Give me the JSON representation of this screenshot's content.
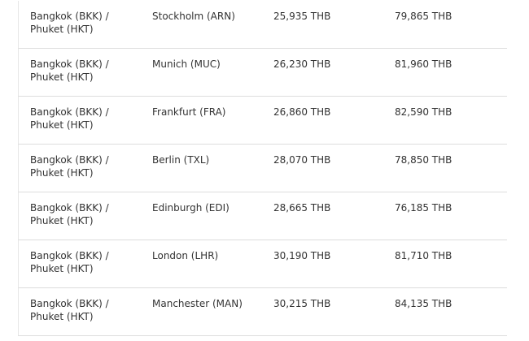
{
  "table": {
    "rows": [
      [
        "Bangkok (BKK) / Phuket (HKT)",
        "Stockholm (ARN)",
        "25,935 THB",
        "79,865 THB"
      ],
      [
        "Bangkok (BKK) / Phuket (HKT)",
        "Munich (MUC)",
        "26,230 THB",
        "81,960 THB"
      ],
      [
        "Bangkok (BKK) / Phuket (HKT)",
        "Frankfurt (FRA)",
        "26,860 THB",
        "82,590 THB"
      ],
      [
        "Bangkok (BKK) / Phuket (HKT)",
        "Berlin (TXL)",
        "28,070 THB",
        "78,850 THB"
      ],
      [
        "Bangkok (BKK) / Phuket (HKT)",
        "Edinburgh (EDI)",
        "28,665 THB",
        "76,185 THB"
      ],
      [
        "Bangkok (BKK) / Phuket (HKT)",
        "London (LHR)",
        "30,190 THB",
        "81,710 THB"
      ],
      [
        "Bangkok (BKK) / Phuket (HKT)",
        "Manchester (MAN)",
        "30,215 THB",
        "84,135 THB"
      ]
    ]
  }
}
